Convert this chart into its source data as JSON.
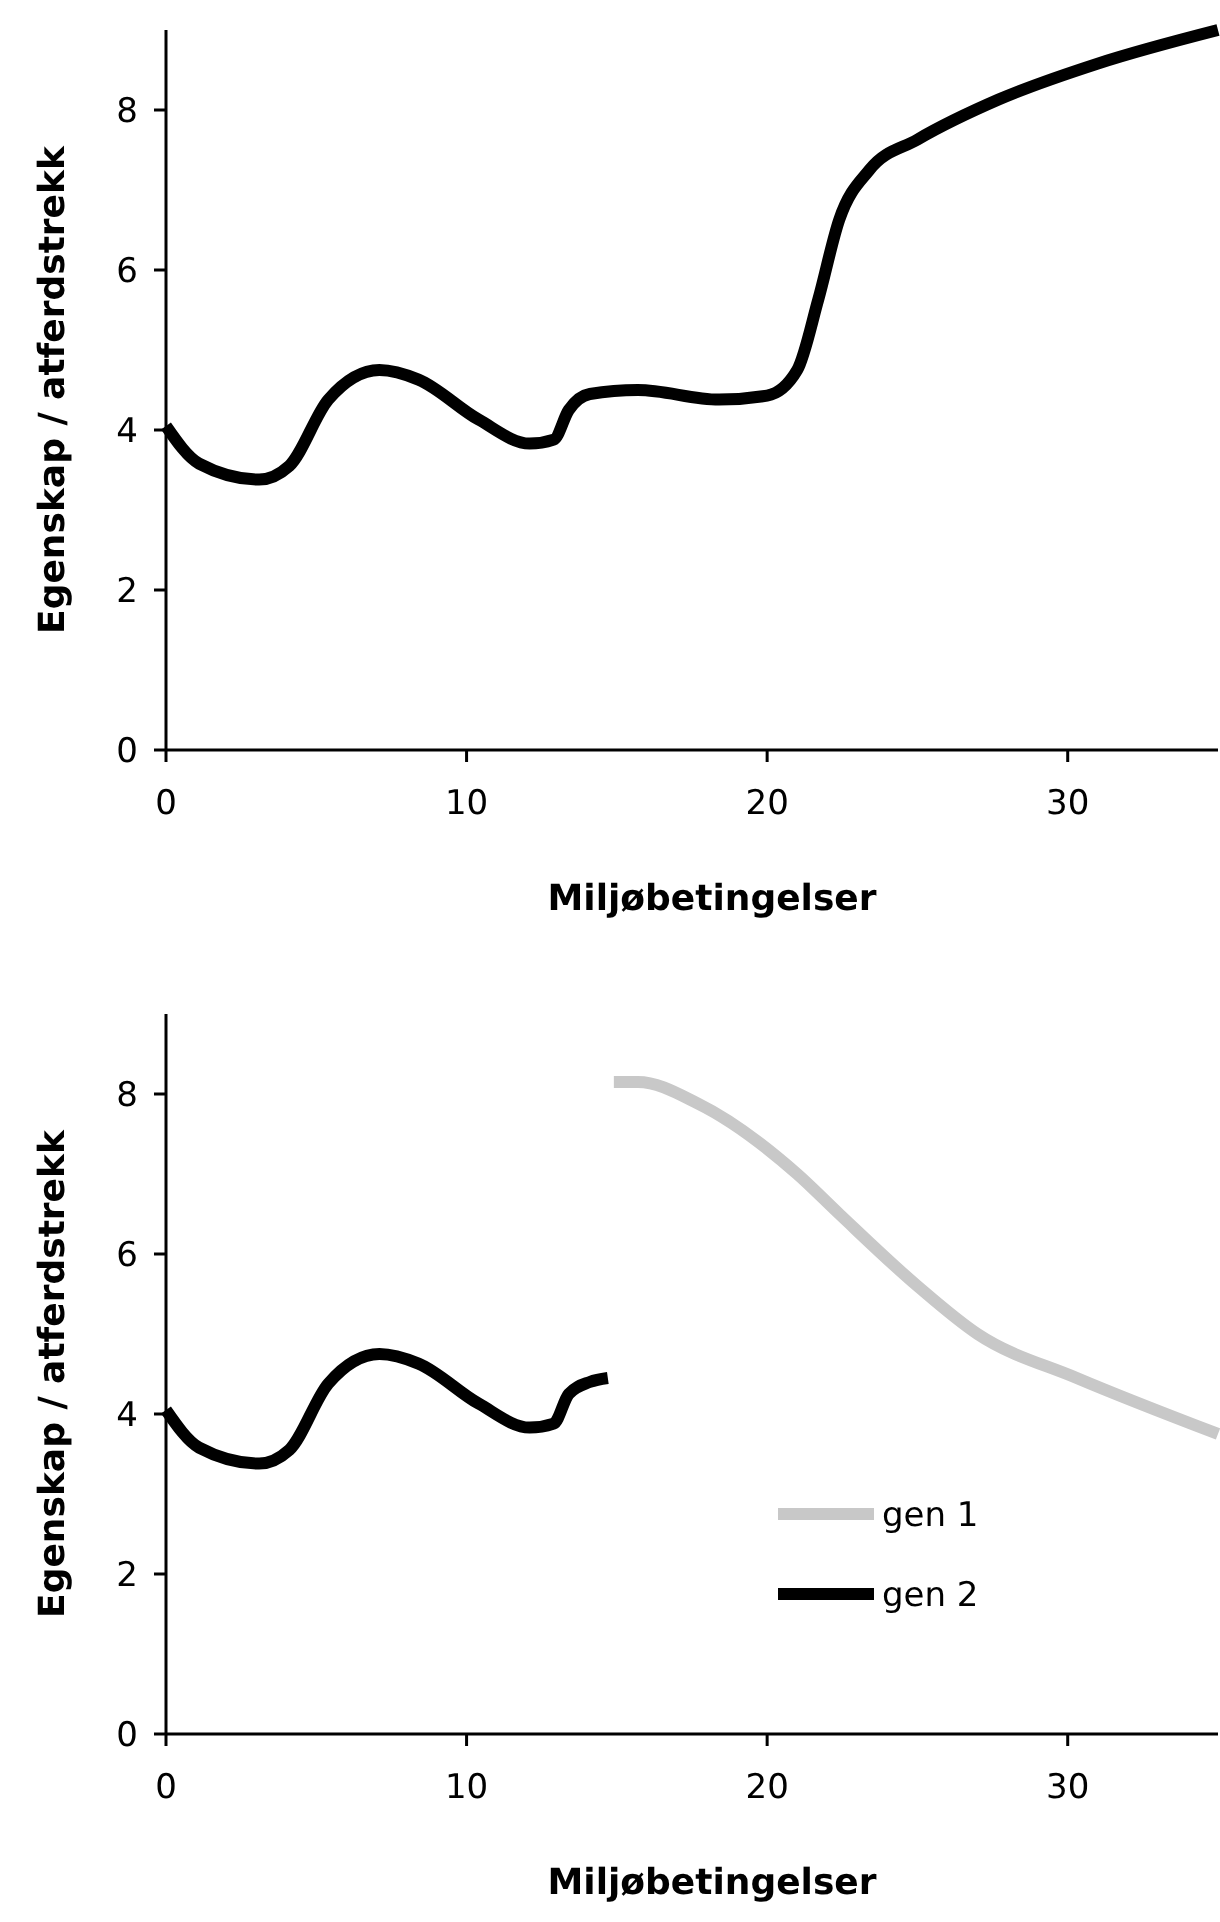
{
  "chart_data": [
    {
      "type": "line",
      "xlabel": "Miljøbetingelser",
      "ylabel": "Egenskap / atferdstrekk",
      "xlim": [
        0,
        35
      ],
      "ylim": [
        0,
        9
      ],
      "xticks": [
        0,
        10,
        20,
        30
      ],
      "yticks": [
        0,
        2,
        4,
        6,
        8
      ],
      "series": [
        {
          "color": "#000000",
          "x": [
            0,
            1.1,
            3.1,
            4.1,
            5.4,
            7.1,
            8.4,
            10.4,
            12.1,
            12.9,
            13.4,
            14.1,
            15.7,
            18.4,
            20,
            21,
            21.7,
            22.4,
            23.4,
            25,
            27.7,
            31,
            35
          ],
          "values": [
            4.05,
            3.58,
            3.38,
            3.55,
            4.38,
            4.75,
            4.63,
            4.13,
            3.83,
            3.88,
            4.25,
            4.45,
            4.5,
            4.38,
            4.43,
            4.75,
            5.63,
            6.63,
            7.25,
            7.63,
            8.13,
            8.58,
            9.0
          ]
        }
      ]
    },
    {
      "type": "line",
      "xlabel": "Miljøbetingelser",
      "ylabel": "Egenskap / atferdstrekk",
      "xlim": [
        0,
        35
      ],
      "ylim": [
        0,
        9
      ],
      "xticks": [
        0,
        10,
        20,
        30
      ],
      "yticks": [
        0,
        2,
        4,
        6,
        8
      ],
      "legend": "bottom right",
      "series": [
        {
          "name": "gen 1",
          "color": "#c8c8c8",
          "x": [
            14.9,
            15.7,
            17.7,
            21,
            22.4,
            25,
            27,
            30.3,
            35
          ],
          "values": [
            8.15,
            8.15,
            7.88,
            7.0,
            6.5,
            5.6,
            5.0,
            4.45,
            3.75
          ]
        },
        {
          "name": "gen 2",
          "color": "#000000",
          "x": [
            0,
            1.1,
            3.1,
            4.1,
            5.4,
            7.1,
            8.4,
            10.4,
            12.1,
            12.9,
            13.4,
            14.1,
            14.7
          ],
          "values": [
            4.05,
            3.58,
            3.38,
            3.55,
            4.38,
            4.75,
            4.63,
            4.13,
            3.83,
            3.88,
            4.25,
            4.4,
            4.45
          ]
        }
      ]
    }
  ]
}
